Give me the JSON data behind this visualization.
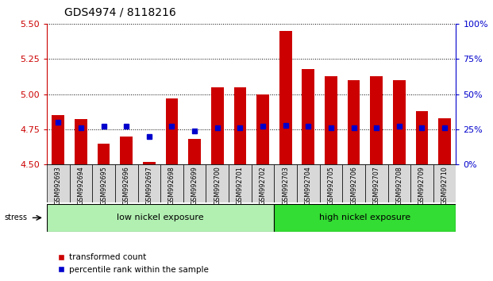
{
  "title": "GDS4974 / 8118216",
  "samples": [
    "GSM992693",
    "GSM992694",
    "GSM992695",
    "GSM992696",
    "GSM992697",
    "GSM992698",
    "GSM992699",
    "GSM992700",
    "GSM992701",
    "GSM992702",
    "GSM992703",
    "GSM992704",
    "GSM992705",
    "GSM992706",
    "GSM992707",
    "GSM992708",
    "GSM992709",
    "GSM992710"
  ],
  "red_values": [
    4.85,
    4.82,
    4.65,
    4.7,
    4.52,
    4.97,
    4.68,
    5.05,
    5.05,
    5.0,
    5.45,
    5.18,
    5.13,
    5.1,
    5.13,
    5.1,
    4.88,
    4.83
  ],
  "blue_values": [
    30,
    26,
    27,
    27,
    20,
    27,
    24,
    26,
    26,
    27,
    28,
    27,
    26,
    26,
    26,
    27,
    26,
    26
  ],
  "ymin": 4.5,
  "ymax": 5.5,
  "y_ticks": [
    4.5,
    4.75,
    5.0,
    5.25,
    5.5
  ],
  "y2min": 0,
  "y2max": 100,
  "y2_ticks": [
    0,
    25,
    50,
    75,
    100
  ],
  "group1_label": "low nickel exposure",
  "group2_label": "high nickel exposure",
  "group1_count": 10,
  "stress_label": "stress",
  "legend1": "transformed count",
  "legend2": "percentile rank within the sample",
  "bar_color": "#cc0000",
  "dot_color": "#0000cc",
  "group1_color": "#b2f0b2",
  "group2_color": "#33dd33",
  "axis_left_color": "#cc0000",
  "axis_right_color": "#0000cc"
}
